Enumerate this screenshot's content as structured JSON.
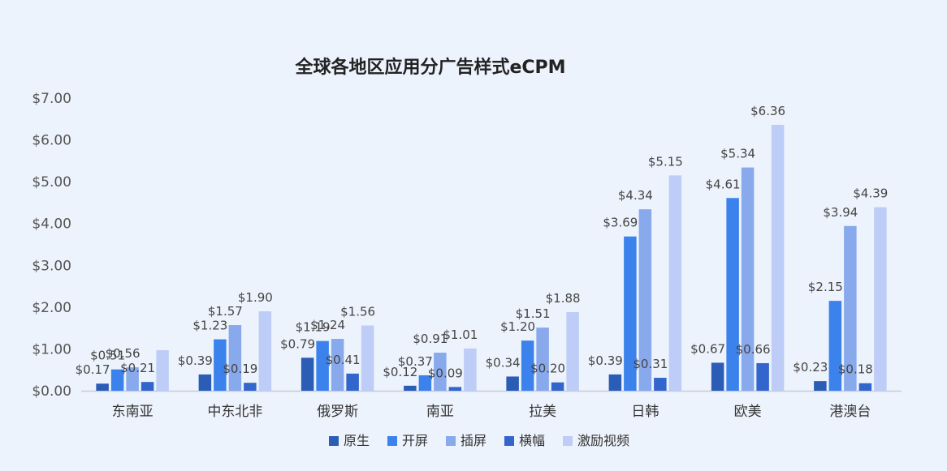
{
  "chart_data": {
    "type": "bar",
    "title": "全球各地区应用分广告样式eCPM",
    "categories": [
      "东南亚",
      "中东北非",
      "俄罗斯",
      "南亚",
      "拉美",
      "日韩",
      "欧美",
      "港澳台"
    ],
    "yticks": [
      "$0.00",
      "$1.00",
      "$2.00",
      "$3.00",
      "$4.00",
      "$5.00",
      "$6.00",
      "$7.00"
    ],
    "ylim": [
      0,
      7
    ],
    "grid": false,
    "legend_position": "bottom",
    "series": [
      {
        "name": "原生",
        "color": "#2B5DB7",
        "values": [
          0.17,
          0.39,
          0.79,
          0.12,
          0.34,
          0.39,
          0.67,
          0.23
        ],
        "labels": [
          "$0.17",
          "$0.39",
          "$0.79",
          "$0.12",
          "$0.34",
          "$0.39",
          "$0.67",
          "$0.23"
        ]
      },
      {
        "name": "开屏",
        "color": "#3C82EC",
        "values": [
          0.51,
          1.23,
          1.19,
          0.37,
          1.2,
          3.69,
          4.61,
          2.15
        ],
        "labels": [
          "$0.51",
          "$1.23",
          "$1.19",
          "$0.37",
          "$1.20",
          "$3.69",
          "$4.61",
          "$2.15"
        ]
      },
      {
        "name": "插屏",
        "color": "#88A9EB",
        "values": [
          0.56,
          1.57,
          1.24,
          0.91,
          1.51,
          4.34,
          5.34,
          3.94
        ],
        "labels": [
          "$0.56",
          "$1.57",
          "$1.24",
          "$0.91",
          "$1.51",
          "$4.34",
          "$5.34",
          "$3.94"
        ]
      },
      {
        "name": "横幅",
        "color": "#3366CC",
        "values": [
          0.21,
          0.19,
          0.41,
          0.09,
          0.2,
          0.31,
          0.66,
          0.18
        ],
        "labels": [
          "$0.21",
          "$0.19",
          "$0.41",
          "$0.09",
          "$0.20",
          "$0.31",
          "$0.66",
          "$0.18"
        ]
      },
      {
        "name": "激励视频",
        "color": "#BDCDF7",
        "values": [
          0.97,
          1.9,
          1.56,
          1.01,
          1.88,
          5.15,
          6.36,
          4.39
        ],
        "labels": [
          "",
          "$1.90",
          "$1.56",
          "$1.01",
          "$1.88",
          "$5.15",
          "$6.36",
          "$4.39"
        ]
      }
    ]
  }
}
